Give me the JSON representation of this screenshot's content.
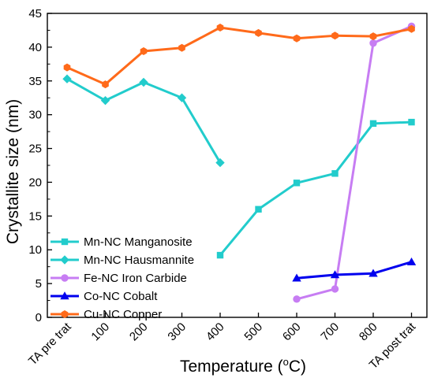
{
  "chart_data": {
    "type": "line",
    "categories": [
      "TA pre trat",
      "100",
      "200",
      "300",
      "400",
      "500",
      "600",
      "700",
      "800",
      "TA post trat"
    ],
    "xlabel": "Temperature (°C)",
    "xlabel_parts": {
      "prefix": "Temperature (",
      "superscript": "o",
      "suffix": "C)"
    },
    "ylabel": "Crystallite size (nm)",
    "ylim": [
      0,
      45
    ],
    "yticks": [
      0,
      5,
      10,
      15,
      20,
      25,
      30,
      35,
      40,
      45
    ],
    "grid": false,
    "legend_position": "bottom-left",
    "series": [
      {
        "name": "Mn-NC Manganosite",
        "color": "#22cccc",
        "marker": "square",
        "points": [
          {
            "x": "400",
            "y": 9.2
          },
          {
            "x": "500",
            "y": 16.0
          },
          {
            "x": "600",
            "y": 19.9
          },
          {
            "x": "700",
            "y": 21.3
          },
          {
            "x": "800",
            "y": 28.7
          },
          {
            "x": "TA post trat",
            "y": 28.9
          }
        ]
      },
      {
        "name": "Mn-NC Hausmannite",
        "color": "#22cccc",
        "marker": "diamond",
        "points": [
          {
            "x": "TA pre trat",
            "y": 35.3
          },
          {
            "x": "100",
            "y": 32.1
          },
          {
            "x": "200",
            "y": 34.8
          },
          {
            "x": "300",
            "y": 32.5
          },
          {
            "x": "400",
            "y": 22.9
          }
        ]
      },
      {
        "name": "Fe-NC Iron Carbide",
        "color": "#c77df3",
        "marker": "circle",
        "points": [
          {
            "x": "600",
            "y": 2.7
          },
          {
            "x": "700",
            "y": 4.2
          },
          {
            "x": "800",
            "y": 40.6
          },
          {
            "x": "TA post trat",
            "y": 43.1
          }
        ]
      },
      {
        "name": "Co-NC Cobalt",
        "color": "#0000ee",
        "marker": "triangle",
        "points": [
          {
            "x": "600",
            "y": 5.8
          },
          {
            "x": "700",
            "y": 6.3
          },
          {
            "x": "800",
            "y": 6.5
          },
          {
            "x": "TA post trat",
            "y": 8.2
          }
        ]
      },
      {
        "name": "Cu-NC Copper",
        "color": "#ff6a1a",
        "marker": "hexagon",
        "points": [
          {
            "x": "TA pre trat",
            "y": 37.0
          },
          {
            "x": "100",
            "y": 34.5
          },
          {
            "x": "200",
            "y": 39.4
          },
          {
            "x": "300",
            "y": 39.9
          },
          {
            "x": "400",
            "y": 42.9
          },
          {
            "x": "500",
            "y": 42.1
          },
          {
            "x": "600",
            "y": 41.3
          },
          {
            "x": "700",
            "y": 41.7
          },
          {
            "x": "800",
            "y": 41.6
          },
          {
            "x": "TA post trat",
            "y": 42.7
          }
        ]
      }
    ]
  }
}
